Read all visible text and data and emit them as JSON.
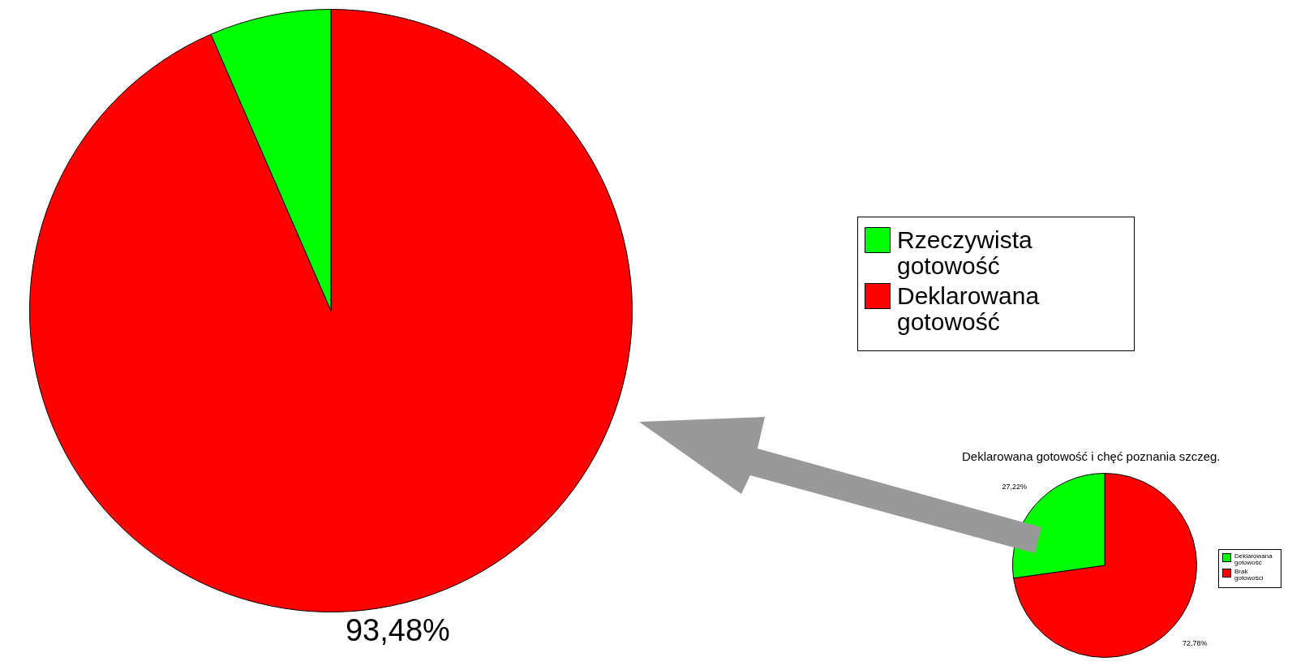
{
  "chart_data": [
    {
      "type": "pie",
      "categories": [
        "Rzeczywista gotowość",
        "Deklarowana gotowość"
      ],
      "values": [
        6.52,
        93.48
      ],
      "colors": [
        "#00ff00",
        "#ff0000"
      ],
      "value_labels": [
        null,
        "93,48%"
      ],
      "legend": "right"
    },
    {
      "type": "pie",
      "title": "Deklarowana gotowość i chęć poznania szczeg.",
      "categories": [
        "Deklarowana gotowość",
        "Brak gotowości"
      ],
      "values": [
        27.22,
        72.78
      ],
      "colors": [
        "#00ff00",
        "#ff0000"
      ],
      "value_labels": [
        "27,22%",
        "72,78%"
      ],
      "legend": "right"
    }
  ]
}
